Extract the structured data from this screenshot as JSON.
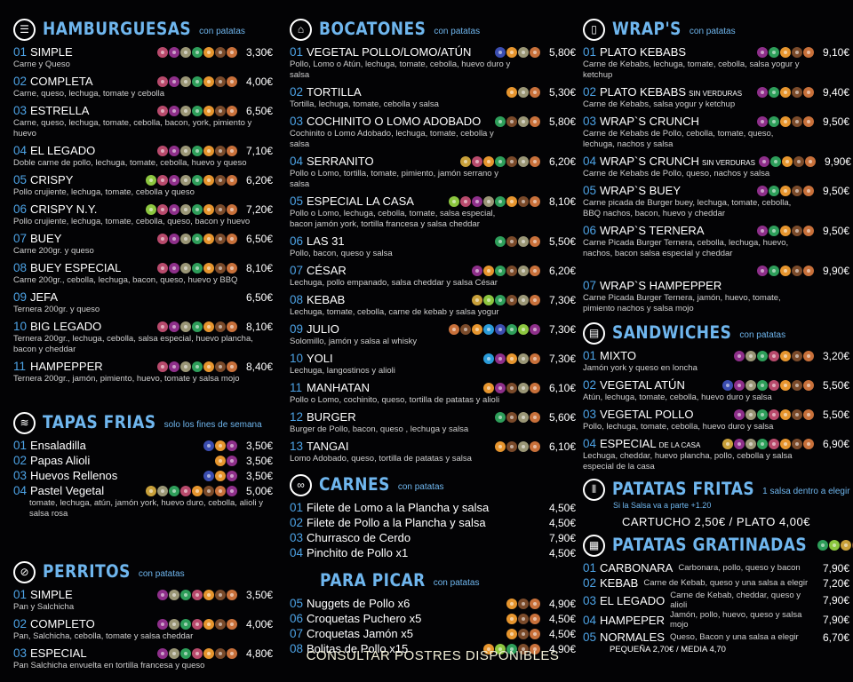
{
  "allergen_colors": {
    "celery": "#b84a6c",
    "sulphites": "#8e2f8a",
    "sesame": "#9a9676",
    "soy": "#2e9e5a",
    "eggs": "#e6952e",
    "milk": "#7a4a2a",
    "gluten": "#c8703a",
    "peanuts": "#8cc63f",
    "fish": "#3b4db0",
    "mustard": "#c8a03a",
    "crustaceans": "#2a9bd8"
  },
  "sections": {
    "hamburguesas": {
      "title": "HAMBURGUESAS",
      "subtitle": "con patatas",
      "icon": "burger-icon",
      "items": [
        {
          "num": "01",
          "name": "SIMPLE",
          "desc": "Carne y Queso",
          "price": "3,30€",
          "allergens": [
            "celery",
            "sulphites",
            "sesame",
            "soy",
            "eggs",
            "milk",
            "gluten"
          ]
        },
        {
          "num": "02",
          "name": "COMPLETA",
          "desc": "Carne, queso, lechuga, tomate y cebolla",
          "price": "4,00€",
          "allergens": [
            "celery",
            "sulphites",
            "sesame",
            "soy",
            "eggs",
            "milk",
            "gluten"
          ]
        },
        {
          "num": "03",
          "name": "ESTRELLA",
          "desc": "Carne, queso, lechuga, tomate, cebolla, bacon, york, pimiento y huevo",
          "price": "6,50€",
          "allergens": [
            "celery",
            "sulphites",
            "sesame",
            "soy",
            "eggs",
            "milk",
            "gluten"
          ]
        },
        {
          "num": "04",
          "name": "EL LEGADO",
          "desc": "Doble carne de pollo, lechuga, tomate, cebolla, huevo y queso",
          "price": "7,10€",
          "allergens": [
            "celery",
            "sulphites",
            "sesame",
            "soy",
            "eggs",
            "milk",
            "gluten"
          ]
        },
        {
          "num": "05",
          "name": "CRISPY",
          "desc": "Pollo crujiente, lechuga, tomate, cebolla y queso",
          "price": "6,20€",
          "allergens": [
            "peanuts",
            "celery",
            "sulphites",
            "sesame",
            "soy",
            "eggs",
            "milk",
            "gluten"
          ]
        },
        {
          "num": "06",
          "name": "CRISPY N.Y.",
          "desc": "Pollo crujiente, lechuga, tomate, cebolla, queso, bacon y huevo",
          "price": "7,20€",
          "allergens": [
            "peanuts",
            "celery",
            "sulphites",
            "sesame",
            "soy",
            "eggs",
            "milk",
            "gluten"
          ]
        },
        {
          "num": "07",
          "name": "BUEY",
          "desc": "Carne 200gr. y queso",
          "price": "6,50€",
          "allergens": [
            "celery",
            "sulphites",
            "sesame",
            "soy",
            "eggs",
            "milk",
            "gluten"
          ]
        },
        {
          "num": "08",
          "name": "BUEY ESPECIAL",
          "desc": "Carne 200gr., cebolla, lechuga, bacon, queso, huevo y BBQ",
          "price": "8,10€",
          "allergens": [
            "celery",
            "sulphites",
            "sesame",
            "soy",
            "eggs",
            "milk",
            "gluten"
          ]
        },
        {
          "num": "09",
          "name": "JEFA",
          "desc": "Ternera 200gr. y queso",
          "price": "6,50€",
          "allergens": []
        },
        {
          "num": "10",
          "name": "BIG LEGADO",
          "desc": "Ternera 200gr., lechuga, cebolla, salsa especial, huevo plancha, bacon y cheddar",
          "price": "8,10€",
          "allergens": [
            "celery",
            "sulphites",
            "sesame",
            "soy",
            "eggs",
            "milk",
            "gluten"
          ]
        },
        {
          "num": "11",
          "name": "HAMPEPPER",
          "desc": "Ternera 200gr., jamón, pimiento, huevo, tomate y salsa mojo",
          "price": "8,40€",
          "allergens": [
            "celery",
            "sulphites",
            "sesame",
            "soy",
            "eggs",
            "milk",
            "gluten"
          ]
        }
      ]
    },
    "tapas": {
      "title": "TAPAS FRIAS",
      "subtitle": "solo los fines de semana",
      "icon": "tapas-tray-icon",
      "items": [
        {
          "num": "01",
          "name": "Ensaladilla",
          "price": "3,50€",
          "allergens": [
            "fish",
            "eggs",
            "sulphites"
          ]
        },
        {
          "num": "02",
          "name": "Papas Alioli",
          "price": "3,50€",
          "allergens": [
            "eggs",
            "sulphites"
          ]
        },
        {
          "num": "03",
          "name": "Huevos Rellenos",
          "price": "3,50€",
          "allergens": [
            "fish",
            "eggs",
            "sulphites"
          ]
        },
        {
          "num": "04",
          "name": "Pastel Vegetal",
          "desc": "tomate, lechuga, atún, jamón york, huevo duro, cebolla, alioli y salsa rosa",
          "price": "5,00€",
          "allergens": [
            "mustard",
            "sesame",
            "soy",
            "celery",
            "eggs",
            "milk",
            "gluten",
            "sulphites"
          ]
        }
      ]
    },
    "perritos": {
      "title": "PERRITOS",
      "subtitle": "con patatas",
      "icon": "hotdog-icon",
      "items": [
        {
          "num": "01",
          "name": "SIMPLE",
          "desc": "Pan y Salchicha",
          "price": "3,50€",
          "allergens": [
            "sulphites",
            "sesame",
            "soy",
            "celery",
            "eggs",
            "milk",
            "gluten"
          ]
        },
        {
          "num": "02",
          "name": "COMPLETO",
          "desc": "Pan, Salchicha, cebolla, tomate y salsa cheddar",
          "price": "4,00€",
          "allergens": [
            "sulphites",
            "sesame",
            "soy",
            "celery",
            "eggs",
            "milk",
            "gluten"
          ]
        },
        {
          "num": "03",
          "name": "ESPECIAL",
          "desc": "Pan Salchicha envuelta en tortilla francesa y queso",
          "price": "4,80€",
          "allergens": [
            "sulphites",
            "sesame",
            "soy",
            "celery",
            "eggs",
            "milk",
            "gluten"
          ]
        }
      ]
    },
    "bocatones": {
      "title": "BOCATONES",
      "subtitle": "con patatas",
      "icon": "sandwich-roll-icon",
      "items": [
        {
          "num": "01",
          "name": "VEGETAL POLLO/LOMO/ATÚN",
          "desc": "Pollo, Lomo o Atún, lechuga, tomate, cebolla, huevo duro y salsa",
          "price": "5,80€",
          "allergens": [
            "fish",
            "eggs",
            "sesame",
            "gluten"
          ]
        },
        {
          "num": "02",
          "name": "TORTILLA",
          "desc": "Tortilla, lechuga, tomate, cebolla y salsa",
          "price": "5,30€",
          "allergens": [
            "eggs",
            "sesame",
            "gluten"
          ]
        },
        {
          "num": "03",
          "name": "COCHINITO O LOMO ADOBADO",
          "desc": "Cochinito o Lomo Adobado, lechuga, tomate, cebolla y salsa",
          "price": "5,80€",
          "allergens": [
            "soy",
            "milk",
            "sesame",
            "gluten"
          ]
        },
        {
          "num": "04",
          "name": "SERRANITO",
          "desc": "Pollo o Lomo, tortilla, tomate, pimiento, jamón serrano y salsa",
          "price": "6,20€",
          "allergens": [
            "mustard",
            "celery",
            "eggs",
            "soy",
            "milk",
            "sesame",
            "gluten"
          ]
        },
        {
          "num": "05",
          "name": "ESPECIAL LA CASA",
          "desc": "Pollo o Lomo, lechuga, cebolla, tomate, salsa especial, bacon jamón york, tortilla francesa y salsa cheddar",
          "price": "8,10€",
          "allergens": [
            "peanuts",
            "celery",
            "sulphites",
            "sesame",
            "soy",
            "eggs",
            "milk",
            "gluten"
          ]
        },
        {
          "num": "06",
          "name": "LAS 31",
          "desc": "Pollo, bacon, queso y salsa",
          "price": "5,50€",
          "allergens": [
            "soy",
            "milk",
            "sesame",
            "gluten"
          ]
        },
        {
          "num": "07",
          "name": "CÉSAR",
          "desc": "Lechuga, pollo empanado, salsa cheddar y salsa César",
          "price": "6,20€",
          "allergens": [
            "sulphites",
            "eggs",
            "soy",
            "milk",
            "sesame",
            "gluten"
          ]
        },
        {
          "num": "08",
          "name": "KEBAB",
          "desc": "Lechuga, tomate, cebolla, carne de kebab y salsa yogur",
          "price": "7,30€",
          "allergens": [
            "mustard",
            "peanuts",
            "soy",
            "milk",
            "sesame",
            "gluten"
          ]
        },
        {
          "num": "09",
          "name": "JULIO",
          "desc": "Solomillo, jamón y salsa al whisky",
          "price": "7,30€",
          "allergens": [
            "gluten",
            "milk",
            "eggs",
            "crustaceans",
            "fish",
            "soy",
            "peanuts",
            "sulphites"
          ]
        },
        {
          "num": "10",
          "name": "YOLI",
          "desc": "Lechuga, langostinos y alioli",
          "price": "7,30€",
          "allergens": [
            "crustaceans",
            "sulphites",
            "eggs",
            "sesame",
            "gluten"
          ]
        },
        {
          "num": "11",
          "name": "MANHATAN",
          "desc": "Pollo o Lomo, cochinito, queso, tortilla de patatas y alioli",
          "price": "6,10€",
          "allergens": [
            "eggs",
            "sulphites",
            "milk",
            "sesame",
            "gluten"
          ]
        },
        {
          "num": "12",
          "name": "BURGER",
          "desc": "Burger de Pollo, bacon, queso , lechuga y salsa",
          "price": "5,60€",
          "allergens": [
            "soy",
            "milk",
            "sesame",
            "gluten"
          ]
        },
        {
          "num": "13",
          "name": "TANGAI",
          "desc": "Lomo Adobado, queso, tortilla de patatas y salsa",
          "price": "6,10€",
          "allergens": [
            "eggs",
            "milk",
            "sesame",
            "gluten"
          ]
        }
      ]
    },
    "carnes": {
      "title": "CARNES",
      "subtitle": "con patatas",
      "icon": "meat-icon",
      "items": [
        {
          "num": "01",
          "name": "Filete de Lomo a la Plancha y salsa",
          "price": "4,50€",
          "allergens": []
        },
        {
          "num": "02",
          "name": "Filete de Pollo a la Plancha y salsa",
          "price": "4,50€",
          "allergens": []
        },
        {
          "num": "03",
          "name": "Churrasco de Cerdo",
          "price": "7,90€",
          "allergens": []
        },
        {
          "num": "04",
          "name": "Pinchito de Pollo x1",
          "price": "4,50€",
          "allergens": []
        }
      ]
    },
    "picar": {
      "title": "PARA PICAR",
      "subtitle": "con patatas",
      "items": [
        {
          "num": "05",
          "name": "Nuggets de Pollo x6",
          "price": "4,90€",
          "allergens": [
            "eggs",
            "milk",
            "gluten"
          ]
        },
        {
          "num": "06",
          "name": "Croquetas Puchero x5",
          "price": "4,50€",
          "allergens": [
            "eggs",
            "milk",
            "gluten"
          ]
        },
        {
          "num": "07",
          "name": "Croquetas Jamón x5",
          "price": "4,50€",
          "allergens": [
            "eggs",
            "milk",
            "gluten"
          ]
        },
        {
          "num": "08",
          "name": "Bolitas de Pollo x15",
          "price": "4,90€",
          "allergens": [
            "eggs",
            "peanuts",
            "soy",
            "milk",
            "gluten"
          ]
        }
      ]
    },
    "wraps": {
      "title": "WRAP'S",
      "subtitle": "con patatas",
      "icon": "wrap-icon",
      "items": [
        {
          "num": "01",
          "name": "PLATO KEBABS",
          "desc": "Carne de Kebabs, lechuga, tomate, cebolla, salsa yogur y ketchup",
          "price": "9,10€",
          "allergens": [
            "sulphites",
            "soy",
            "eggs",
            "milk",
            "gluten"
          ]
        },
        {
          "num": "02",
          "name": "PLATO KEBABS",
          "suffix": "SIN VERDURAS",
          "desc": "Carne de Kebabs, salsa yogur y ketchup",
          "price": "9,40€",
          "allergens": [
            "sulphites",
            "soy",
            "eggs",
            "milk",
            "gluten"
          ]
        },
        {
          "num": "03",
          "name": "WRAP`S CRUNCH",
          "desc": "Carne de Kebabs de Pollo, cebolla, tomate, queso, lechuga, nachos y salsa",
          "price": "9,50€",
          "allergens": [
            "sulphites",
            "soy",
            "eggs",
            "milk",
            "gluten"
          ]
        },
        {
          "num": "04",
          "name": "WRAP`S CRUNCH",
          "suffix": "SIN VERDURAS",
          "desc": "Carne de Kebabs de Pollo, queso, nachos y salsa",
          "price": "9,90€",
          "allergens": [
            "sulphites",
            "soy",
            "eggs",
            "milk",
            "gluten"
          ]
        },
        {
          "num": "05",
          "name": "WRAP`S BUEY",
          "desc": "Carne picada de Burger buey, lechuga, tomate, cebolla, BBQ nachos, bacon, huevo y cheddar",
          "price": "9,50€",
          "allergens": [
            "sulphites",
            "soy",
            "eggs",
            "milk",
            "gluten"
          ]
        },
        {
          "num": "06",
          "name": "WRAP`S TERNERA",
          "desc": "Carne Picada Burger Ternera, cebolla, lechuga, huevo, nachos, bacon salsa especial y cheddar",
          "price": "9,50€",
          "allergens": [
            "sulphites",
            "soy",
            "eggs",
            "milk",
            "gluten"
          ]
        },
        {
          "num": "07",
          "name": "WRAP`S HAMPEPPER",
          "desc": "Carne Picada Burger Ternera, jamón, huevo, tomate, pimiento nachos y salsa mojo",
          "price": "9,90€",
          "allergens": [
            "sulphites",
            "soy",
            "eggs",
            "milk",
            "gluten"
          ],
          "price_above": true
        }
      ]
    },
    "sandwiches": {
      "title": "SANDWICHES",
      "subtitle": "con patatas",
      "icon": "sandwich-icon",
      "items": [
        {
          "num": "01",
          "name": "MIXTO",
          "desc": "Jamón york y queso en loncha",
          "price": "3,20€",
          "allergens": [
            "sulphites",
            "sesame",
            "soy",
            "celery",
            "eggs",
            "milk",
            "gluten"
          ]
        },
        {
          "num": "02",
          "name": "VEGETAL ATÚN",
          "desc": "Atún, lechuga, tomate, cebolla, huevo duro y salsa",
          "price": "5,50€",
          "allergens": [
            "fish",
            "sulphites",
            "sesame",
            "soy",
            "celery",
            "eggs",
            "milk",
            "gluten"
          ]
        },
        {
          "num": "03",
          "name": "VEGETAL POLLO",
          "desc": "Pollo, lechuga, tomate, cebolla, huevo duro y salsa",
          "price": "5,50€",
          "allergens": [
            "sulphites",
            "sesame",
            "soy",
            "celery",
            "eggs",
            "milk",
            "gluten"
          ]
        },
        {
          "num": "04",
          "name": "ESPECIAL",
          "suffix": "DE LA CASA",
          "desc": "Lechuga,  cheddar, huevo plancha, pollo, cebolla y salsa especial de la casa",
          "price": "6,90€",
          "allergens": [
            "mustard",
            "sulphites",
            "sesame",
            "soy",
            "celery",
            "eggs",
            "milk",
            "gluten"
          ]
        }
      ]
    },
    "fritas": {
      "title": "PATATAS FRITAS",
      "subtitle": "1 salsa dentro a elegir",
      "icon": "fries-icon",
      "note": "Si la Salsa va a parte +1.20",
      "prices": "CARTUCHO  2,50€  /  PLATO  4,00€"
    },
    "gratinadas": {
      "title": "PATATAS GRATINADAS",
      "icon": "gratin-icon",
      "allergens": [
        "soy",
        "peanuts",
        "mustard",
        "milk",
        "eggs"
      ],
      "footer": "PEQUEÑA  2,70€  /  MEDIA  4,70",
      "items": [
        {
          "num": "01",
          "name": "CARBONARA",
          "desc": "Carbonara, pollo, queso y bacon",
          "price": "7,90€"
        },
        {
          "num": "02",
          "name": "KEBAB",
          "desc": "Carne de Kebab, queso y una salsa a elegir",
          "price": "7,20€"
        },
        {
          "num": "03",
          "name": "EL LEGADO",
          "desc": "Carne de Kebab, cheddar, queso y alioli",
          "price": "7,90€"
        },
        {
          "num": "04",
          "name": "HAMPEPER",
          "desc": "Jamón, pollo, huevo, queso y salsa mojo",
          "price": "7,90€"
        },
        {
          "num": "05",
          "name": "NORMALES",
          "desc": "Queso, Bacon y una salsa a elegir",
          "price": "6,70€"
        }
      ]
    }
  },
  "footer": {
    "consult": "CONSULTAR POSTRES DISPONIBLES"
  }
}
